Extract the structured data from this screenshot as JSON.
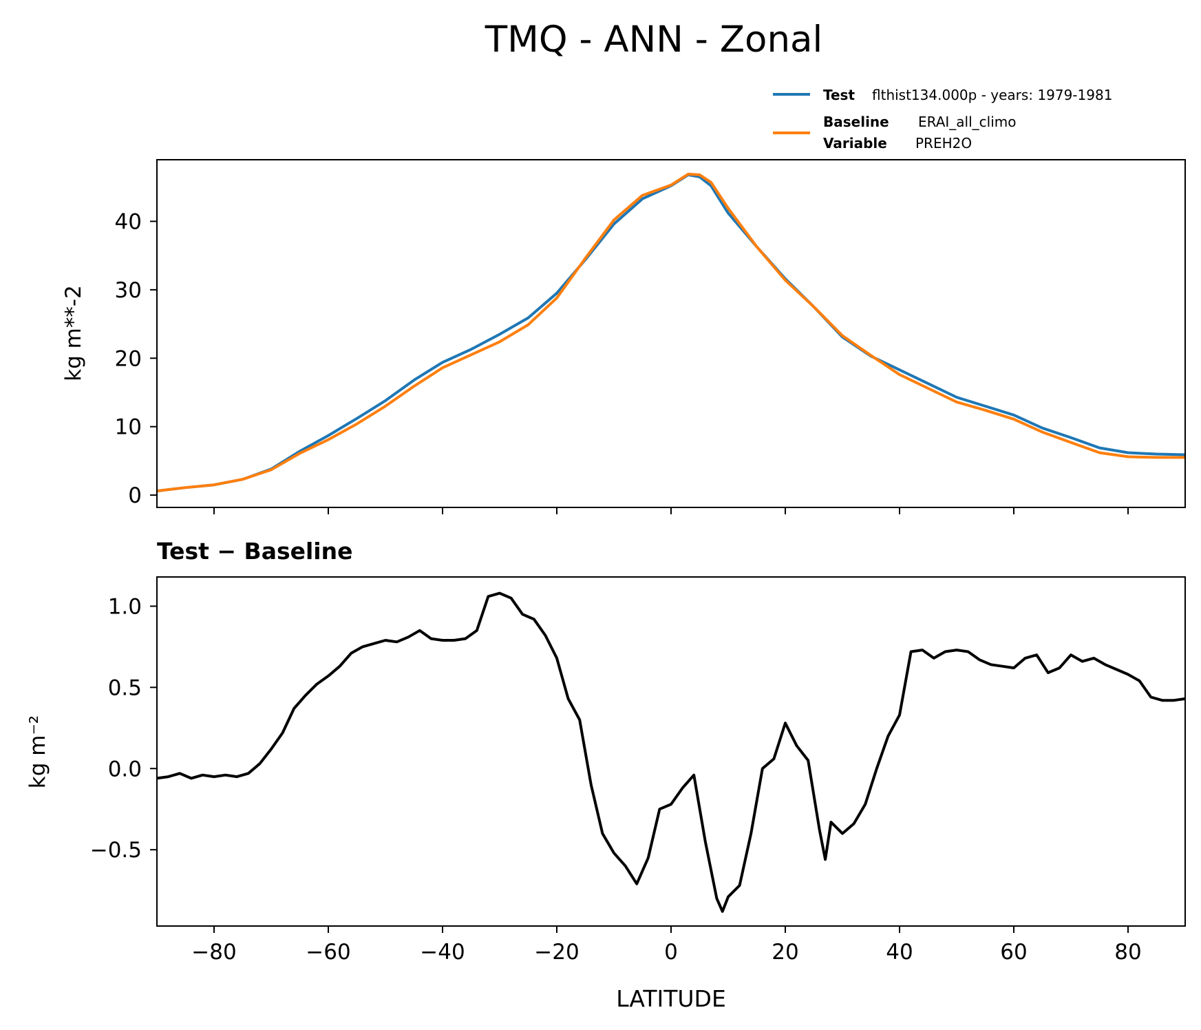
{
  "figure": {
    "title": "TMQ - ANN - Zonal"
  },
  "legend": {
    "test": {
      "label": "Test",
      "text": "flthist134.000p - years: 1979-1981",
      "color": "#1f77b4"
    },
    "baseline": {
      "label": "Baseline",
      "text": "ERAI_all_climo",
      "color": "#ff7f0e"
    },
    "variable": {
      "label": "Variable",
      "text": "PREH2O"
    }
  },
  "chart_data": [
    {
      "type": "line",
      "title": "",
      "xlabel": "",
      "ylabel": "kg m**-2",
      "xlim": [
        -90,
        90
      ],
      "ylim": [
        -1.8,
        49
      ],
      "yticks": [
        0,
        10,
        20,
        30,
        40
      ],
      "yticklabels": [
        "0",
        "10",
        "20",
        "30",
        "40"
      ],
      "xticks": [
        -80,
        -60,
        -40,
        -20,
        0,
        20,
        40,
        60,
        80
      ],
      "grid": false,
      "legend_position": "top-right, above plot",
      "x": [
        -90,
        -85,
        -80,
        -75,
        -70,
        -65,
        -60,
        -55,
        -50,
        -45,
        -40,
        -35,
        -30,
        -25,
        -20,
        -15,
        -10,
        -5,
        0,
        3,
        5,
        7,
        10,
        15,
        20,
        25,
        30,
        35,
        40,
        45,
        50,
        55,
        60,
        65,
        70,
        75,
        80,
        85,
        90
      ],
      "series": [
        {
          "name": "Test",
          "color": "#1f77b4",
          "values": [
            0.6,
            1.1,
            1.5,
            2.3,
            3.8,
            6.4,
            8.7,
            11.2,
            13.8,
            16.8,
            19.4,
            21.3,
            23.5,
            25.9,
            29.5,
            34.4,
            39.6,
            43.3,
            45.2,
            46.8,
            46.5,
            45.2,
            41.2,
            36.3,
            31.6,
            27.5,
            23.1,
            20.3,
            18.3,
            16.3,
            14.3,
            13.0,
            11.7,
            9.8,
            8.4,
            6.9,
            6.2,
            6.0,
            5.9
          ]
        },
        {
          "name": "Baseline",
          "color": "#ff7f0e",
          "values": [
            0.6,
            1.1,
            1.5,
            2.3,
            3.7,
            6.1,
            8.1,
            10.4,
            13.0,
            15.9,
            18.6,
            20.5,
            22.4,
            24.9,
            28.8,
            34.6,
            40.2,
            43.8,
            45.3,
            46.9,
            46.8,
            45.7,
            41.9,
            36.3,
            31.4,
            27.5,
            23.3,
            20.4,
            17.6,
            15.6,
            13.6,
            12.4,
            11.1,
            9.2,
            7.7,
            6.2,
            5.6,
            5.5,
            5.5
          ]
        }
      ]
    },
    {
      "type": "line",
      "title": "Test − Baseline",
      "xlabel": "LATITUDE",
      "ylabel": "kg m⁻²",
      "xlim": [
        -90,
        90
      ],
      "ylim": [
        -0.97,
        1.18
      ],
      "yticks": [
        -0.5,
        0.0,
        0.5,
        1.0
      ],
      "yticklabels": [
        "−0.5",
        "0.0",
        "0.5",
        "1.0"
      ],
      "xticks": [
        -80,
        -60,
        -40,
        -20,
        0,
        20,
        40,
        60,
        80
      ],
      "xticklabels": [
        "−80",
        "−60",
        "−40",
        "−20",
        "0",
        "20",
        "40",
        "60",
        "80"
      ],
      "grid": false,
      "x": [
        -90,
        -88,
        -86,
        -84,
        -82,
        -80,
        -78,
        -76,
        -74,
        -72,
        -70,
        -68,
        -66,
        -64,
        -62,
        -60,
        -58,
        -56,
        -54,
        -52,
        -50,
        -48,
        -46,
        -44,
        -42,
        -40,
        -38,
        -36,
        -34,
        -32,
        -30,
        -28,
        -26,
        -24,
        -22,
        -20,
        -18,
        -16,
        -14,
        -12,
        -10,
        -8,
        -6,
        -4,
        -2,
        0,
        2,
        4,
        6,
        8,
        9,
        10,
        12,
        14,
        16,
        18,
        20,
        22,
        24,
        26,
        27,
        28,
        30,
        32,
        34,
        36,
        38,
        40,
        42,
        44,
        46,
        48,
        50,
        52,
        54,
        56,
        58,
        60,
        62,
        64,
        66,
        68,
        70,
        72,
        74,
        76,
        78,
        80,
        82,
        84,
        86,
        88,
        90
      ],
      "series": [
        {
          "name": "",
          "color": "#000000",
          "values": [
            -0.06,
            -0.05,
            -0.03,
            -0.06,
            -0.04,
            -0.05,
            -0.04,
            -0.05,
            -0.03,
            0.03,
            0.12,
            0.22,
            0.37,
            0.45,
            0.52,
            0.57,
            0.63,
            0.71,
            0.75,
            0.77,
            0.79,
            0.78,
            0.81,
            0.85,
            0.8,
            0.79,
            0.79,
            0.8,
            0.85,
            1.06,
            1.08,
            1.05,
            0.95,
            0.92,
            0.82,
            0.68,
            0.43,
            0.3,
            -0.1,
            -0.4,
            -0.52,
            -0.6,
            -0.71,
            -0.55,
            -0.25,
            -0.22,
            -0.12,
            -0.04,
            -0.45,
            -0.8,
            -0.88,
            -0.79,
            -0.72,
            -0.4,
            0.0,
            0.06,
            0.28,
            0.14,
            0.05,
            -0.38,
            -0.56,
            -0.33,
            -0.4,
            -0.34,
            -0.22,
            0.0,
            0.2,
            0.33,
            0.72,
            0.73,
            0.68,
            0.72,
            0.73,
            0.72,
            0.67,
            0.64,
            0.63,
            0.62,
            0.68,
            0.7,
            0.59,
            0.62,
            0.7,
            0.66,
            0.68,
            0.64,
            0.61,
            0.58,
            0.54,
            0.44,
            0.42,
            0.42,
            0.43
          ]
        }
      ]
    }
  ]
}
